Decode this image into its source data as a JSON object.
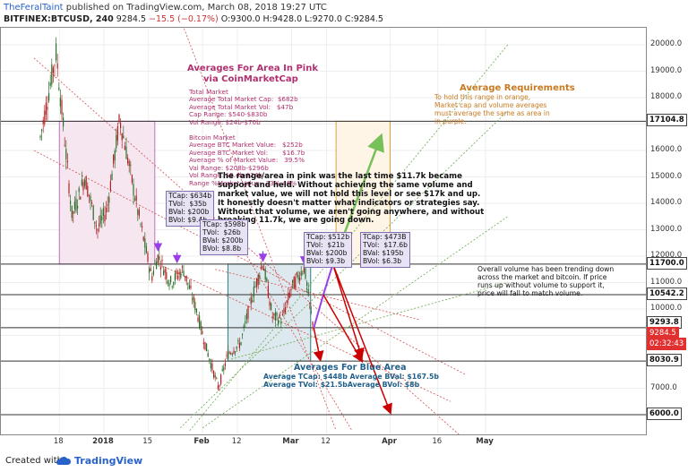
{
  "header": {
    "user": "TheFeralTaint",
    "published_text": "published on TradingView.com, March 08, 2018 19:27 UTC",
    "symbol_line_prefix": "BITFINEX:BTCUSD, 240",
    "last": "9284.5",
    "change": "−15.5 (−0.17%)",
    "ohlc": "O:9300.0 H:9428.0 L:9270.0 C:9284.5"
  },
  "footer": {
    "created_with": "Created with",
    "brand": "TradingView"
  },
  "colors": {
    "up": "#2b6e2b",
    "down": "#b02020",
    "pink_box": "#c070c0",
    "blue_box": "#2f7f7f",
    "orange_box": "#e0a040",
    "red_arrow": "#cc0000",
    "green_arrow": "#77c05a",
    "purple_arrow": "#9a3fe8"
  },
  "chart_data": {
    "type": "line",
    "title": "",
    "xlabel": "",
    "ylabel": "",
    "ylim": [
      5400,
      21000
    ],
    "x_ticks": [
      "18",
      "2018",
      "15",
      "Feb",
      "12",
      "Mar",
      "12",
      "Apr",
      "16",
      "May"
    ],
    "y_ticks": [
      "20000.0",
      "19000.0",
      "18000.0",
      "17000.0",
      "16000.0",
      "15000.0",
      "14000.0",
      "13000.0",
      "12000.0",
      "11000.0",
      "10000.0",
      "9000.0",
      "7000.0"
    ],
    "price_labels": {
      "h17104": "17104.8",
      "h11700": "11700.0",
      "h10542": "10542.2",
      "h9293": "9293.8",
      "last": "9284.5",
      "countdown": "02:32:43",
      "h8030": "8030.9",
      "h6000": "6000.0"
    },
    "horizontal_levels": [
      17104.8,
      11700.0,
      10542.2,
      9293.8,
      8030.9,
      6000.0
    ],
    "price_path": {
      "x": [
        "2017-12-12",
        "2017-12-17",
        "2017-12-22",
        "2017-12-26",
        "2017-12-30",
        "2018-01-02",
        "2018-01-06",
        "2018-01-08",
        "2018-01-12",
        "2018-01-16",
        "2018-01-18",
        "2018-01-22",
        "2018-01-26",
        "2018-01-30",
        "2018-02-02",
        "2018-02-06",
        "2018-02-09",
        "2018-02-13",
        "2018-02-16",
        "2018-02-20",
        "2018-02-23",
        "2018-02-26",
        "2018-03-01",
        "2018-03-05",
        "2018-03-07",
        "2018-03-08"
      ],
      "y": [
        16500,
        19700,
        13500,
        15000,
        13000,
        13800,
        17200,
        16000,
        13500,
        11200,
        12000,
        11000,
        11500,
        10000,
        8600,
        7000,
        8300,
        8700,
        10200,
        11800,
        9700,
        9600,
        10800,
        11600,
        9900,
        9284.5
      ]
    }
  },
  "annotations": {
    "pink_title": "Averages For Area In Pink",
    "pink_sub": "via CoinMarketCap",
    "pink_lines": [
      "Total Market",
      "Average Total Market Cap:  $682b",
      "Average Total Market Vol:   $47b",
      "Cap Range: $540-$830b",
      "Vol Range: $24b-$70b",
      "",
      "Bitcoin Market",
      "Average BTC Market Value:   $252b",
      "Average BTC Market Vol:       $16.7b",
      "Average % of Market Value:   39.5%",
      "Val Range: $208b-$296b",
      "Vol Range: $9.4b-$24b",
      "Range %Market Value:  33%-46%"
    ],
    "range_note": "The range/area in pink was the last time $11.7k became\nsupport and held. Without achieving the same volume and\nmarket value, we will not hold this level or see $17k and up.\nIt honestly doesn't matter what indicators or strategies say.\nWithout that volume, we aren't going anywhere, and without\nbreaking 11.7k, we are going down.",
    "req_title": "Average Requirements",
    "req_text": "To hold this range in orange,\nMarket cap and volume averages\nmust average the same as area in\nin purple.",
    "vol_note": "Overall volume has been trending down\nacross the market and bitcoin. If price\nruns up without volume to support it,\nprice will fall to match volume.",
    "blue_title": "Averages For Blue Area",
    "blue_line1": "Average TCap: $448b Average BVal: $167.5b",
    "blue_line2": "Average TVol: $21.5bAverage BVol: $8b",
    "box1": "TCap: $634b\nTVol:  $35b\nBVal: $200b\nBVol: $9.4b",
    "box2": "TCap: $598b\nTVol:  $26b\nBVal: $200b\nBVol: $8.8b",
    "box3": "TCap: $512b\nTVol:  $21b\nBVal: $200b\nBVol: $9.3b",
    "box4": "TCap: $473B\nTVol:  $17.6b\nBVal: $195b\nBVol: $6.3b"
  }
}
